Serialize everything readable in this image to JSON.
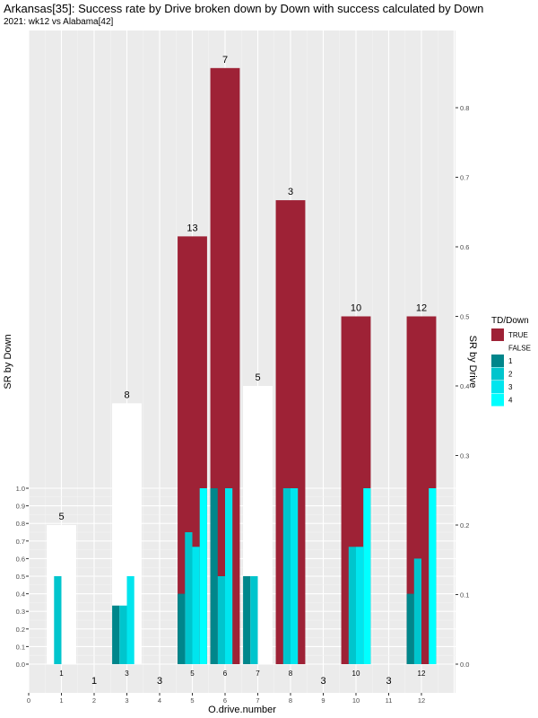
{
  "title": "Arkansas[35]: Success rate by Drive broken down by Down with success calculated by Down",
  "subtitle": "2021: wk12 vs Alabama[42]",
  "chart_data": {
    "type": "bar",
    "xlabel": "O.drive.number",
    "ylabel_left": "SR by Down",
    "ylabel_right": "SR by Drive",
    "xlim": [
      0,
      13
    ],
    "x_ticks": [
      "0",
      "1",
      "2",
      "3",
      "4",
      "5",
      "6",
      "7",
      "8",
      "9",
      "10",
      "11",
      "12"
    ],
    "x_labels": [
      "1",
      "3",
      "5",
      "6",
      "7",
      "8",
      "10",
      "12"
    ],
    "y_left_ticks": [
      "0.0",
      "0.1",
      "0.2",
      "0.3",
      "0.4",
      "0.5",
      "0.6",
      "0.7",
      "0.8",
      "0.9",
      "1.0"
    ],
    "y_right_ticks": [
      "0.0",
      "0.1",
      "0.2",
      "0.3",
      "0.4",
      "0.5",
      "0.6",
      "0.7",
      "0.8"
    ],
    "grid": true,
    "legend": {
      "title": "TD/Down",
      "placement": "right",
      "entries": [
        {
          "label": "TRUE",
          "color": "#9e2236"
        },
        {
          "label": "FALSE",
          "color": "#ffffff"
        },
        {
          "label": "1",
          "color": "#00868b"
        },
        {
          "label": "2",
          "color": "#00c5cd"
        },
        {
          "label": "3",
          "color": "#00e5ee"
        },
        {
          "label": "4",
          "color": "#00ffff"
        }
      ]
    },
    "drive_bars": [
      {
        "drive": 1,
        "sr": 0.2,
        "td": false,
        "label": "5"
      },
      {
        "drive": 2,
        "sr": 0,
        "td": false,
        "label": "1"
      },
      {
        "drive": 3,
        "sr": 0.375,
        "td": false,
        "label": "8"
      },
      {
        "drive": 4,
        "sr": 0,
        "td": false,
        "label": "3"
      },
      {
        "drive": 5,
        "sr": 0.615,
        "td": true,
        "label": "13"
      },
      {
        "drive": 6,
        "sr": 0.857,
        "td": true,
        "label": "7"
      },
      {
        "drive": 7,
        "sr": 0.4,
        "td": false,
        "label": "5"
      },
      {
        "drive": 8,
        "sr": 0.667,
        "td": true,
        "label": "3"
      },
      {
        "drive": 9,
        "sr": 0,
        "td": false,
        "label": "3"
      },
      {
        "drive": 10,
        "sr": 0.5,
        "td": true,
        "label": "10"
      },
      {
        "drive": 11,
        "sr": 0,
        "td": false,
        "label": "3"
      },
      {
        "drive": 12,
        "sr": 0.5,
        "td": true,
        "label": "12"
      }
    ],
    "down_bars": [
      {
        "drive": 1,
        "down": 2,
        "sr": 0.5
      },
      {
        "drive": 3,
        "down": 1,
        "sr": 0.333
      },
      {
        "drive": 3,
        "down": 2,
        "sr": 0.333
      },
      {
        "drive": 3,
        "down": 3,
        "sr": 0.5
      },
      {
        "drive": 5,
        "down": 1,
        "sr": 0.4
      },
      {
        "drive": 5,
        "down": 2,
        "sr": 0.75
      },
      {
        "drive": 5,
        "down": 3,
        "sr": 0.667
      },
      {
        "drive": 5,
        "down": 4,
        "sr": 1.0
      },
      {
        "drive": 6,
        "down": 1,
        "sr": 1.0
      },
      {
        "drive": 6,
        "down": 2,
        "sr": 0.5
      },
      {
        "drive": 6,
        "down": 3,
        "sr": 1.0
      },
      {
        "drive": 7,
        "down": 1,
        "sr": 0.5
      },
      {
        "drive": 7,
        "down": 2,
        "sr": 0.5
      },
      {
        "drive": 8,
        "down": 2,
        "sr": 1.0
      },
      {
        "drive": 8,
        "down": 3,
        "sr": 1.0
      },
      {
        "drive": 10,
        "down": 2,
        "sr": 0.667
      },
      {
        "drive": 10,
        "down": 3,
        "sr": 0.667
      },
      {
        "drive": 10,
        "down": 4,
        "sr": 1.0
      },
      {
        "drive": 12,
        "down": 1,
        "sr": 0.4
      },
      {
        "drive": 12,
        "down": 2,
        "sr": 0.6
      },
      {
        "drive": 12,
        "down": 4,
        "sr": 1.0
      }
    ]
  }
}
